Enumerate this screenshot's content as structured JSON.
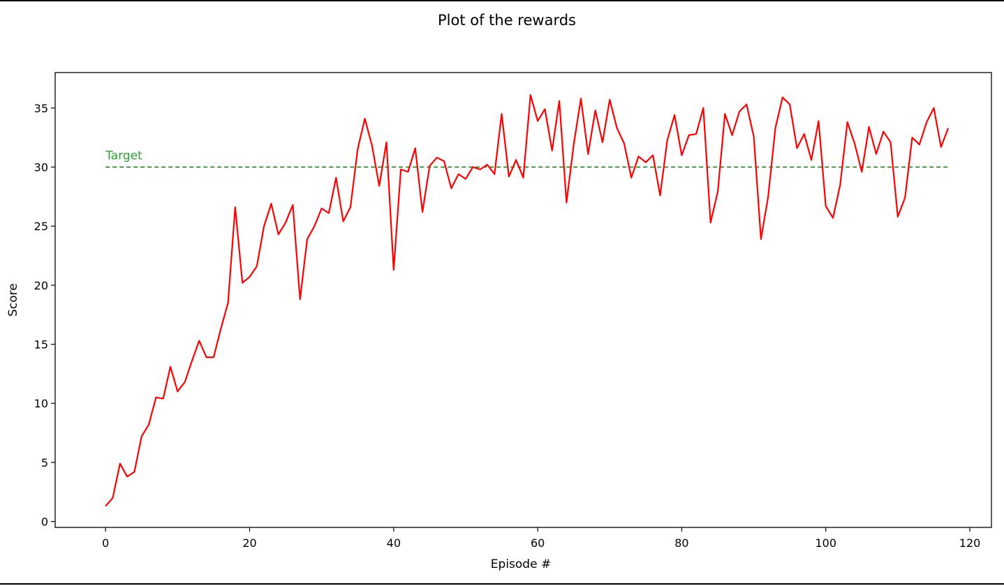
{
  "chart_data": {
    "type": "line",
    "title": "Plot of the rewards",
    "xlabel": "Episode #",
    "ylabel": "Score",
    "xlim": [
      -7,
      123
    ],
    "ylim": [
      -0.5,
      38
    ],
    "xticks": [
      0,
      20,
      40,
      60,
      80,
      100,
      120
    ],
    "yticks": [
      0,
      5,
      10,
      15,
      20,
      25,
      30,
      35
    ],
    "grid": false,
    "series": [
      {
        "color": "#ff0000",
        "style": "solid",
        "x_start": 0,
        "values": [
          1.3,
          2.0,
          4.9,
          3.8,
          4.2,
          7.2,
          8.2,
          10.5,
          10.4,
          13.1,
          11.0,
          11.8,
          13.6,
          15.3,
          13.9,
          13.9,
          16.3,
          18.5,
          26.6,
          20.2,
          20.7,
          21.6,
          25.0,
          26.9,
          24.3,
          25.3,
          26.8,
          18.8,
          23.9,
          25.0,
          26.5,
          26.1,
          29.1,
          25.4,
          26.6,
          31.5,
          34.1,
          31.8,
          28.4,
          32.1,
          21.3,
          29.8,
          29.6,
          31.6,
          26.2,
          30.1,
          30.8,
          30.5,
          28.2,
          29.4,
          29.0,
          30.0,
          29.8,
          30.2,
          29.4,
          34.5,
          29.2,
          30.6,
          29.1,
          36.1,
          33.9,
          34.9,
          31.4,
          35.6,
          27.0,
          31.9,
          35.8,
          31.1,
          34.8,
          32.1,
          35.7,
          33.3,
          32.0,
          29.1,
          30.9,
          30.4,
          31.0,
          27.6,
          32.3,
          34.4,
          31.0,
          32.7,
          32.8,
          35.0,
          25.3,
          27.9,
          34.5,
          32.7,
          34.7,
          35.3,
          32.6,
          23.9,
          27.5,
          33.3,
          35.9,
          35.3,
          31.6,
          32.8,
          30.6,
          33.9,
          26.7,
          25.7,
          28.5,
          33.8,
          32.0,
          29.6,
          33.4,
          31.1,
          33.0,
          32.1,
          25.8,
          27.4,
          32.5,
          31.9,
          33.8,
          35.0,
          31.7,
          33.3
        ]
      },
      {
        "color": "#008000",
        "style": "dashed",
        "x": [
          0,
          117
        ],
        "values": [
          30,
          30
        ]
      }
    ],
    "annotations": [
      {
        "text": "Target",
        "x": 0,
        "y": 31,
        "color": "#2ca02c"
      }
    ]
  }
}
